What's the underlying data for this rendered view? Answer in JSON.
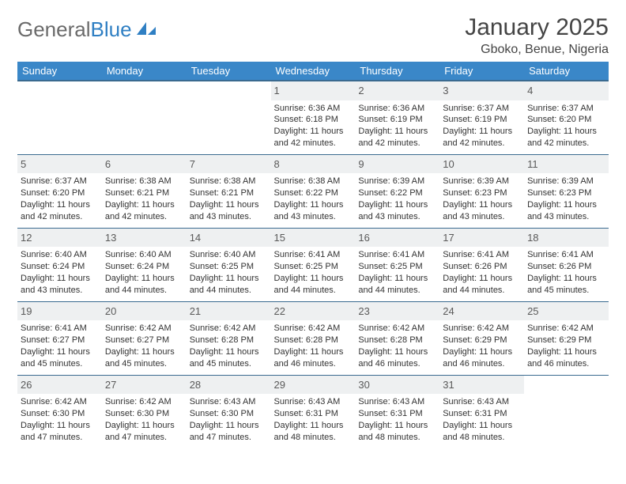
{
  "brand": {
    "part1": "General",
    "part2": "Blue"
  },
  "title": "January 2025",
  "location": "Gboko, Benue, Nigeria",
  "weekdays": [
    "Sunday",
    "Monday",
    "Tuesday",
    "Wednesday",
    "Thursday",
    "Friday",
    "Saturday"
  ],
  "colors": {
    "header_bg": "#3a87c8",
    "row_border": "#3a6a90",
    "daynum_bg": "#eef0f1",
    "logo_grey": "#6a6a6a",
    "logo_blue": "#2f7fc3"
  },
  "weeks": [
    [
      null,
      null,
      null,
      {
        "n": "1",
        "sr": "Sunrise: 6:36 AM",
        "ss": "Sunset: 6:18 PM",
        "d1": "Daylight: 11 hours",
        "d2": "and 42 minutes."
      },
      {
        "n": "2",
        "sr": "Sunrise: 6:36 AM",
        "ss": "Sunset: 6:19 PM",
        "d1": "Daylight: 11 hours",
        "d2": "and 42 minutes."
      },
      {
        "n": "3",
        "sr": "Sunrise: 6:37 AM",
        "ss": "Sunset: 6:19 PM",
        "d1": "Daylight: 11 hours",
        "d2": "and 42 minutes."
      },
      {
        "n": "4",
        "sr": "Sunrise: 6:37 AM",
        "ss": "Sunset: 6:20 PM",
        "d1": "Daylight: 11 hours",
        "d2": "and 42 minutes."
      }
    ],
    [
      {
        "n": "5",
        "sr": "Sunrise: 6:37 AM",
        "ss": "Sunset: 6:20 PM",
        "d1": "Daylight: 11 hours",
        "d2": "and 42 minutes."
      },
      {
        "n": "6",
        "sr": "Sunrise: 6:38 AM",
        "ss": "Sunset: 6:21 PM",
        "d1": "Daylight: 11 hours",
        "d2": "and 42 minutes."
      },
      {
        "n": "7",
        "sr": "Sunrise: 6:38 AM",
        "ss": "Sunset: 6:21 PM",
        "d1": "Daylight: 11 hours",
        "d2": "and 43 minutes."
      },
      {
        "n": "8",
        "sr": "Sunrise: 6:38 AM",
        "ss": "Sunset: 6:22 PM",
        "d1": "Daylight: 11 hours",
        "d2": "and 43 minutes."
      },
      {
        "n": "9",
        "sr": "Sunrise: 6:39 AM",
        "ss": "Sunset: 6:22 PM",
        "d1": "Daylight: 11 hours",
        "d2": "and 43 minutes."
      },
      {
        "n": "10",
        "sr": "Sunrise: 6:39 AM",
        "ss": "Sunset: 6:23 PM",
        "d1": "Daylight: 11 hours",
        "d2": "and 43 minutes."
      },
      {
        "n": "11",
        "sr": "Sunrise: 6:39 AM",
        "ss": "Sunset: 6:23 PM",
        "d1": "Daylight: 11 hours",
        "d2": "and 43 minutes."
      }
    ],
    [
      {
        "n": "12",
        "sr": "Sunrise: 6:40 AM",
        "ss": "Sunset: 6:24 PM",
        "d1": "Daylight: 11 hours",
        "d2": "and 43 minutes."
      },
      {
        "n": "13",
        "sr": "Sunrise: 6:40 AM",
        "ss": "Sunset: 6:24 PM",
        "d1": "Daylight: 11 hours",
        "d2": "and 44 minutes."
      },
      {
        "n": "14",
        "sr": "Sunrise: 6:40 AM",
        "ss": "Sunset: 6:25 PM",
        "d1": "Daylight: 11 hours",
        "d2": "and 44 minutes."
      },
      {
        "n": "15",
        "sr": "Sunrise: 6:41 AM",
        "ss": "Sunset: 6:25 PM",
        "d1": "Daylight: 11 hours",
        "d2": "and 44 minutes."
      },
      {
        "n": "16",
        "sr": "Sunrise: 6:41 AM",
        "ss": "Sunset: 6:25 PM",
        "d1": "Daylight: 11 hours",
        "d2": "and 44 minutes."
      },
      {
        "n": "17",
        "sr": "Sunrise: 6:41 AM",
        "ss": "Sunset: 6:26 PM",
        "d1": "Daylight: 11 hours",
        "d2": "and 44 minutes."
      },
      {
        "n": "18",
        "sr": "Sunrise: 6:41 AM",
        "ss": "Sunset: 6:26 PM",
        "d1": "Daylight: 11 hours",
        "d2": "and 45 minutes."
      }
    ],
    [
      {
        "n": "19",
        "sr": "Sunrise: 6:41 AM",
        "ss": "Sunset: 6:27 PM",
        "d1": "Daylight: 11 hours",
        "d2": "and 45 minutes."
      },
      {
        "n": "20",
        "sr": "Sunrise: 6:42 AM",
        "ss": "Sunset: 6:27 PM",
        "d1": "Daylight: 11 hours",
        "d2": "and 45 minutes."
      },
      {
        "n": "21",
        "sr": "Sunrise: 6:42 AM",
        "ss": "Sunset: 6:28 PM",
        "d1": "Daylight: 11 hours",
        "d2": "and 45 minutes."
      },
      {
        "n": "22",
        "sr": "Sunrise: 6:42 AM",
        "ss": "Sunset: 6:28 PM",
        "d1": "Daylight: 11 hours",
        "d2": "and 46 minutes."
      },
      {
        "n": "23",
        "sr": "Sunrise: 6:42 AM",
        "ss": "Sunset: 6:28 PM",
        "d1": "Daylight: 11 hours",
        "d2": "and 46 minutes."
      },
      {
        "n": "24",
        "sr": "Sunrise: 6:42 AM",
        "ss": "Sunset: 6:29 PM",
        "d1": "Daylight: 11 hours",
        "d2": "and 46 minutes."
      },
      {
        "n": "25",
        "sr": "Sunrise: 6:42 AM",
        "ss": "Sunset: 6:29 PM",
        "d1": "Daylight: 11 hours",
        "d2": "and 46 minutes."
      }
    ],
    [
      {
        "n": "26",
        "sr": "Sunrise: 6:42 AM",
        "ss": "Sunset: 6:30 PM",
        "d1": "Daylight: 11 hours",
        "d2": "and 47 minutes."
      },
      {
        "n": "27",
        "sr": "Sunrise: 6:42 AM",
        "ss": "Sunset: 6:30 PM",
        "d1": "Daylight: 11 hours",
        "d2": "and 47 minutes."
      },
      {
        "n": "28",
        "sr": "Sunrise: 6:43 AM",
        "ss": "Sunset: 6:30 PM",
        "d1": "Daylight: 11 hours",
        "d2": "and 47 minutes."
      },
      {
        "n": "29",
        "sr": "Sunrise: 6:43 AM",
        "ss": "Sunset: 6:31 PM",
        "d1": "Daylight: 11 hours",
        "d2": "and 48 minutes."
      },
      {
        "n": "30",
        "sr": "Sunrise: 6:43 AM",
        "ss": "Sunset: 6:31 PM",
        "d1": "Daylight: 11 hours",
        "d2": "and 48 minutes."
      },
      {
        "n": "31",
        "sr": "Sunrise: 6:43 AM",
        "ss": "Sunset: 6:31 PM",
        "d1": "Daylight: 11 hours",
        "d2": "and 48 minutes."
      },
      null
    ]
  ]
}
